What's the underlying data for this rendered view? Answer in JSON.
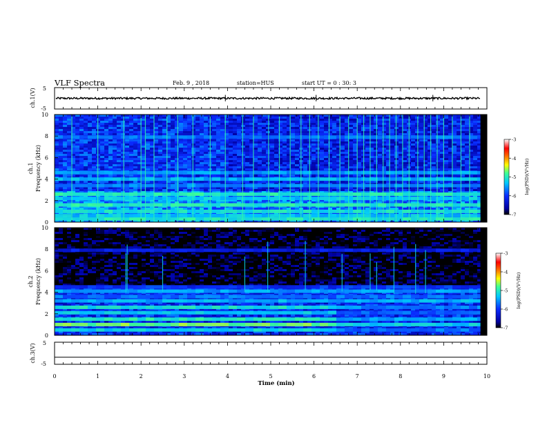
{
  "header": {
    "title": "VLF Spectra",
    "date": "Feb. 9 , 2018",
    "station": "station=HUS",
    "start": "start UT = 0 : 30: 3"
  },
  "colors": {
    "background": "#ffffff",
    "axis": "#000000",
    "colormap": [
      "#000000",
      "#0000a0",
      "#0a2cff",
      "#00c8ff",
      "#3cff96",
      "#ffff00",
      "#ff6a00",
      "#ff0000",
      "#ffffff"
    ]
  },
  "chart_data": [
    {
      "type": "line",
      "id": "ch1-waveform",
      "ylabel": "ch.1(V)",
      "ylim": [
        -5,
        5
      ],
      "yticks": [
        "5",
        "-5"
      ],
      "xlim": [
        0,
        10
      ],
      "signal_level": 0,
      "spike_times": [
        3.95,
        6.05,
        8.75
      ]
    },
    {
      "type": "heatmap",
      "id": "ch1-spectrogram",
      "ylabel": "ch.1 Frequency (kHz)",
      "ylim": [
        0,
        10
      ],
      "yticks": [
        "0",
        "2",
        "4",
        "6",
        "8",
        "10"
      ],
      "xlim": [
        0,
        9.85
      ],
      "background_level": -6.2,
      "bands_khz": [
        0.3,
        0.6,
        1.0,
        1.6,
        2.2,
        2.6,
        3.4,
        4.0,
        4.6,
        7.9
      ],
      "band_levels": [
        -5.0,
        -5.3,
        -5.1,
        -5.0,
        -5.3,
        -5.0,
        -5.6,
        -5.4,
        -5.5,
        -5.7
      ],
      "sferic_times_min": [
        0.4,
        1.0,
        1.6,
        2.0,
        2.1,
        2.3,
        2.6,
        2.85,
        3.2,
        3.6,
        3.95,
        4.35,
        4.6,
        4.95,
        5.2,
        5.45,
        5.7,
        5.9,
        6.1,
        6.35,
        6.6,
        6.8,
        7.0,
        7.15,
        7.3,
        7.45,
        7.6,
        7.75,
        7.9,
        8.05,
        8.2,
        8.4,
        8.55,
        8.7,
        8.85,
        9.0,
        9.2,
        9.4,
        9.6
      ]
    },
    {
      "type": "heatmap",
      "id": "ch2-spectrogram",
      "ylabel": "ch.2 Frequency (kHz)",
      "ylim": [
        0,
        10
      ],
      "yticks": [
        "0",
        "2",
        "4",
        "6",
        "8",
        "10"
      ],
      "xlim": [
        0,
        9.85
      ],
      "background_level": -7.0,
      "bands_khz": [
        0.5,
        1.0,
        1.5,
        2.1,
        2.6,
        3.2,
        3.6,
        4.1,
        4.5,
        7.9
      ],
      "band_levels": [
        -5.2,
        -4.7,
        -5.0,
        -5.3,
        -5.1,
        -5.4,
        -5.7,
        -5.5,
        -6.0,
        -6.2
      ],
      "sferic_times_min": [
        1.65,
        1.68,
        2.5,
        4.4,
        4.93,
        5.8,
        6.65,
        7.3,
        7.45,
        7.85,
        8.35,
        8.58
      ]
    },
    {
      "type": "line",
      "id": "ch3-waveform",
      "ylabel": "ch.3(V)",
      "ylim": [
        -5,
        5
      ],
      "yticks": [
        "5",
        "-5"
      ],
      "xlim": [
        0,
        10
      ],
      "signal_level": -1.8
    }
  ],
  "colorbars": [
    {
      "id": "colorbar-1",
      "label": "log(PSD)(V²/Hz)",
      "range": [
        -7,
        -3
      ],
      "ticks": [
        "-3",
        "-4",
        "-5",
        "-6",
        "-7"
      ]
    },
    {
      "id": "colorbar-2",
      "label": "log(PSD)(V²/Hz)",
      "range": [
        -7,
        -3
      ],
      "ticks": [
        "-3",
        "-4",
        "-5",
        "-6",
        "-7"
      ]
    }
  ],
  "xaxis": {
    "label": "Time (min)",
    "range": [
      0,
      10
    ],
    "ticks": [
      "0",
      "1",
      "2",
      "3",
      "4",
      "5",
      "6",
      "7",
      "8",
      "9",
      "10"
    ]
  }
}
